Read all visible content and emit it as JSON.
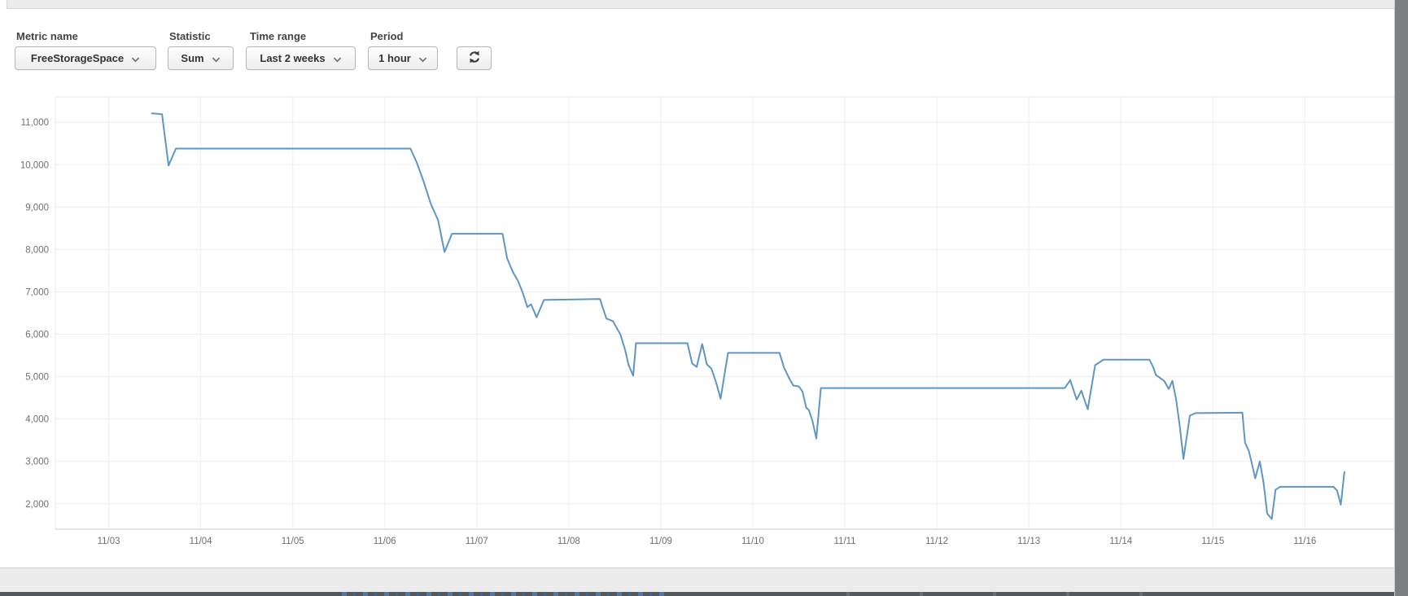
{
  "toolbar": {
    "fields": [
      {
        "label": "Metric name",
        "value": "FreeStorageSpace"
      },
      {
        "label": "Statistic",
        "value": "Sum"
      },
      {
        "label": "Time range",
        "value": "Last 2 weeks"
      },
      {
        "label": "Period",
        "value": "1 hour"
      }
    ],
    "refresh_icon": "circular-arrows-refresh",
    "dropdown_icon": "chevron-down"
  },
  "colors": {
    "line": "#5e96c5",
    "grid": "#f0f0f0",
    "plot_border": "#e7e7e7",
    "axis_line": "#cccccc",
    "axis_text": "#6f6f6f"
  },
  "chart_data": {
    "type": "line",
    "title": "",
    "xlabel": "",
    "ylabel": "",
    "grid": true,
    "legend": false,
    "x_axis": {
      "tick_labels": [
        "11/03",
        "11/04",
        "11/05",
        "11/06",
        "11/07",
        "11/08",
        "11/09",
        "11/10",
        "11/11",
        "11/12",
        "11/13",
        "11/14",
        "11/15",
        "11/16"
      ],
      "tick_day_offsets": [
        0,
        1,
        2,
        3,
        4,
        5,
        6,
        7,
        8,
        9,
        10,
        11,
        12,
        13
      ],
      "xlim_day_offsets": [
        -0.58,
        13.97
      ]
    },
    "y_axis": {
      "ticks": [
        2000,
        3000,
        4000,
        5000,
        6000,
        7000,
        8000,
        9000,
        10000,
        11000
      ],
      "tick_labels": [
        "2,000",
        "3,000",
        "4,000",
        "5,000",
        "6,000",
        "7,000",
        "8,000",
        "9,000",
        "10,000",
        "11,000"
      ],
      "ylim": [
        1400,
        11600
      ]
    },
    "series": [
      {
        "name": "FreeStorageSpace Sum",
        "points": [
          [
            0.47,
            11210
          ],
          [
            0.58,
            11190
          ],
          [
            0.65,
            9980
          ],
          [
            0.73,
            10380
          ],
          [
            3.28,
            10380
          ],
          [
            3.35,
            10040
          ],
          [
            3.42,
            9620
          ],
          [
            3.5,
            9080
          ],
          [
            3.58,
            8690
          ],
          [
            3.65,
            7940
          ],
          [
            3.73,
            8370
          ],
          [
            4.28,
            8370
          ],
          [
            4.33,
            7790
          ],
          [
            4.39,
            7480
          ],
          [
            4.45,
            7250
          ],
          [
            4.5,
            6980
          ],
          [
            4.55,
            6640
          ],
          [
            4.59,
            6710
          ],
          [
            4.65,
            6400
          ],
          [
            4.73,
            6810
          ],
          [
            5.34,
            6830
          ],
          [
            5.37,
            6620
          ],
          [
            5.41,
            6370
          ],
          [
            5.48,
            6310
          ],
          [
            5.52,
            6150
          ],
          [
            5.56,
            6000
          ],
          [
            5.61,
            5650
          ],
          [
            5.65,
            5270
          ],
          [
            5.7,
            5020
          ],
          [
            5.73,
            5790
          ],
          [
            6.29,
            5790
          ],
          [
            6.34,
            5310
          ],
          [
            6.39,
            5230
          ],
          [
            6.45,
            5770
          ],
          [
            6.5,
            5290
          ],
          [
            6.55,
            5190
          ],
          [
            6.6,
            4870
          ],
          [
            6.65,
            4480
          ],
          [
            6.73,
            5560
          ],
          [
            7.29,
            5560
          ],
          [
            7.34,
            5210
          ],
          [
            7.4,
            4940
          ],
          [
            7.44,
            4790
          ],
          [
            7.5,
            4770
          ],
          [
            7.54,
            4650
          ],
          [
            7.58,
            4270
          ],
          [
            7.61,
            4210
          ],
          [
            7.65,
            3940
          ],
          [
            7.69,
            3540
          ],
          [
            7.74,
            4730
          ],
          [
            10.39,
            4730
          ],
          [
            10.45,
            4920
          ],
          [
            10.52,
            4460
          ],
          [
            10.57,
            4670
          ],
          [
            10.64,
            4230
          ],
          [
            10.72,
            5270
          ],
          [
            10.81,
            5400
          ],
          [
            11.31,
            5400
          ],
          [
            11.35,
            5230
          ],
          [
            11.38,
            5040
          ],
          [
            11.47,
            4900
          ],
          [
            11.52,
            4710
          ],
          [
            11.56,
            4900
          ],
          [
            11.6,
            4460
          ],
          [
            11.64,
            3830
          ],
          [
            11.68,
            3060
          ],
          [
            11.75,
            4080
          ],
          [
            11.81,
            4140
          ],
          [
            12.32,
            4150
          ],
          [
            12.35,
            3440
          ],
          [
            12.39,
            3250
          ],
          [
            12.42,
            2980
          ],
          [
            12.46,
            2600
          ],
          [
            12.51,
            3000
          ],
          [
            12.55,
            2500
          ],
          [
            12.59,
            1770
          ],
          [
            12.64,
            1640
          ],
          [
            12.68,
            2330
          ],
          [
            12.73,
            2400
          ],
          [
            13.31,
            2400
          ],
          [
            13.35,
            2310
          ],
          [
            13.39,
            1980
          ],
          [
            13.43,
            2750
          ]
        ]
      }
    ]
  }
}
